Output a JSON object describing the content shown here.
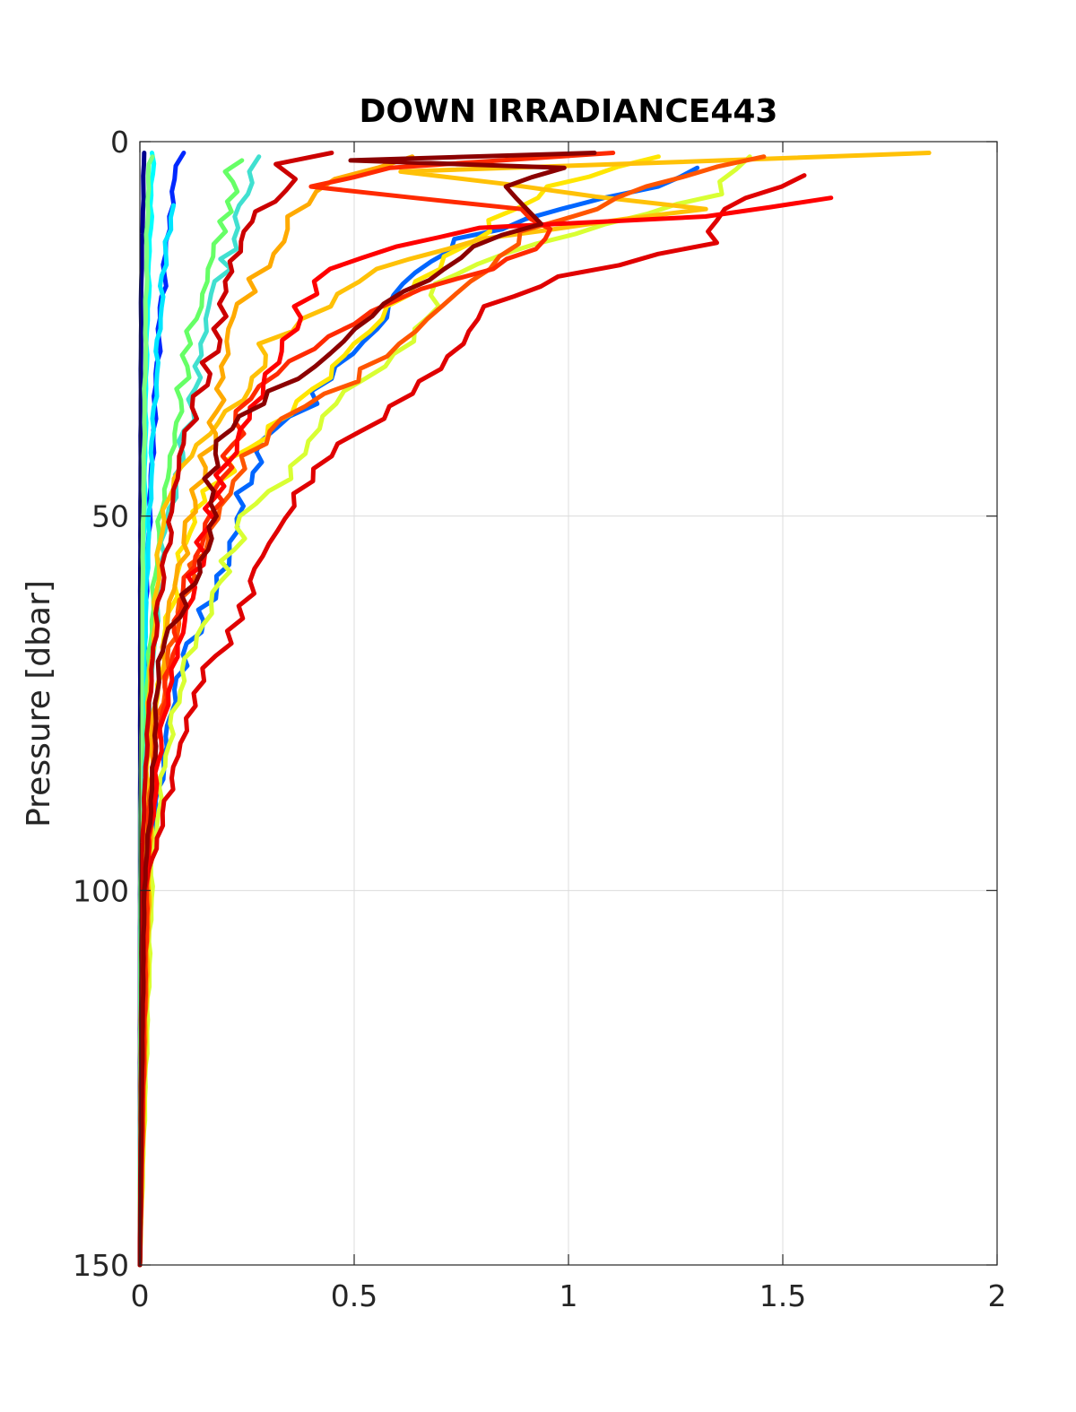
{
  "chart_data": {
    "type": "line",
    "title": "DOWN IRRADIANCE443",
    "xlabel": "",
    "ylabel": "Pressure [dbar]",
    "xlim": [
      0,
      2
    ],
    "ylim": [
      0,
      150
    ],
    "y_reversed": true,
    "grid": true,
    "legend": "none",
    "xticks": [
      0,
      0.5,
      1,
      1.5,
      2
    ],
    "xtick_labels": [
      "0",
      "0.5",
      "1",
      "1.5",
      "2"
    ],
    "yticks": [
      0,
      50,
      100,
      150
    ],
    "ytick_labels": [
      "0",
      "50",
      "100",
      "150"
    ],
    "series": [
      {
        "color": "#00008f",
        "points": [
          [
            0.01,
            1.5
          ],
          [
            0.003,
            20
          ],
          [
            0.001,
            60
          ],
          [
            0,
            150
          ]
        ]
      },
      {
        "color": "#0028ff",
        "points": [
          [
            0.09,
            1.5
          ],
          [
            0.085,
            5
          ],
          [
            0.075,
            10
          ],
          [
            0.06,
            15
          ],
          [
            0.045,
            25
          ],
          [
            0.03,
            40
          ],
          [
            0.015,
            60
          ],
          [
            0.006,
            80
          ],
          [
            0.002,
            100
          ],
          [
            0,
            150
          ]
        ]
      },
      {
        "color": "#00e5ff",
        "points": [
          [
            0.075,
            8.5
          ],
          [
            0.06,
            15
          ],
          [
            0.045,
            25
          ],
          [
            0.03,
            40
          ],
          [
            0.015,
            60
          ],
          [
            0.006,
            80
          ],
          [
            0.002,
            100
          ],
          [
            0,
            150
          ]
        ]
      },
      {
        "color": "#00ffff",
        "points": [
          [
            0.03,
            1.5
          ],
          [
            0.025,
            10
          ],
          [
            0.015,
            30
          ],
          [
            0.008,
            60
          ],
          [
            0.003,
            90
          ],
          [
            0,
            150
          ]
        ]
      },
      {
        "color": "#7fff7f",
        "points": [
          [
            0.03,
            2
          ],
          [
            0.02,
            3
          ],
          [
            0.018,
            8
          ],
          [
            0.012,
            30
          ],
          [
            0.006,
            60
          ],
          [
            0.002,
            90
          ],
          [
            0,
            150
          ]
        ]
      },
      {
        "color": "#66ff66",
        "points": [
          [
            0.24,
            2.5
          ],
          [
            0.22,
            4
          ],
          [
            0.2,
            8
          ],
          [
            0.18,
            12
          ],
          [
            0.16,
            17
          ],
          [
            0.14,
            22
          ],
          [
            0.12,
            27
          ],
          [
            0.1,
            33
          ],
          [
            0.08,
            39
          ],
          [
            0.06,
            45
          ],
          [
            0.04,
            55
          ],
          [
            0.02,
            70
          ],
          [
            0.01,
            85
          ],
          [
            0.003,
            100
          ],
          [
            0,
            150
          ]
        ]
      },
      {
        "color": "#40e0d0",
        "points": [
          [
            0.29,
            2
          ],
          [
            0.27,
            4
          ],
          [
            0.25,
            7
          ],
          [
            0.23,
            10
          ],
          [
            0.21,
            13
          ],
          [
            0.19,
            17
          ],
          [
            0.17,
            22
          ],
          [
            0.15,
            27
          ],
          [
            0.13,
            33
          ],
          [
            0.1,
            40
          ],
          [
            0.08,
            46
          ],
          [
            0.05,
            55
          ],
          [
            0.03,
            70
          ],
          [
            0.01,
            85
          ],
          [
            0,
            150
          ]
        ]
      },
      {
        "color": "#0066ff",
        "points": [
          [
            1.3,
            3.5
          ],
          [
            1.2,
            6
          ],
          [
            1.0,
            9
          ],
          [
            0.75,
            13
          ],
          [
            0.6,
            19
          ],
          [
            0.55,
            25
          ],
          [
            0.45,
            30
          ],
          [
            0.4,
            35
          ],
          [
            0.3,
            40
          ],
          [
            0.24,
            47
          ],
          [
            0.22,
            52
          ],
          [
            0.18,
            58
          ],
          [
            0.14,
            64
          ],
          [
            0.1,
            70
          ],
          [
            0.07,
            78
          ],
          [
            0.04,
            88
          ],
          [
            0.02,
            100
          ],
          [
            0,
            150
          ]
        ]
      },
      {
        "color": "#d9ff33",
        "points": [
          [
            1.4,
            2
          ],
          [
            1.35,
            7
          ],
          [
            1.1,
            11
          ],
          [
            0.85,
            15
          ],
          [
            0.7,
            19
          ],
          [
            0.65,
            25
          ],
          [
            0.55,
            30
          ],
          [
            0.45,
            35
          ],
          [
            0.4,
            40
          ],
          [
            0.35,
            45
          ],
          [
            0.25,
            50
          ],
          [
            0.2,
            56
          ],
          [
            0.15,
            63
          ],
          [
            0.1,
            72
          ],
          [
            0.06,
            82
          ],
          [
            0.03,
            95
          ],
          [
            0,
            150
          ]
        ]
      },
      {
        "color": "#ffe600",
        "points": [
          [
            1.2,
            2
          ],
          [
            0.95,
            6
          ],
          [
            0.8,
            12
          ],
          [
            0.7,
            17
          ],
          [
            0.6,
            22
          ],
          [
            0.5,
            27
          ],
          [
            0.4,
            33
          ],
          [
            0.3,
            38
          ],
          [
            0.2,
            44
          ],
          [
            0.15,
            48
          ],
          [
            0.1,
            55
          ],
          [
            0.06,
            65
          ],
          [
            0.03,
            80
          ],
          [
            0,
            150
          ]
        ]
      },
      {
        "color": "#ffc107",
        "points": [
          [
            1.86,
            1.5
          ],
          [
            0.6,
            4
          ],
          [
            1.3,
            9
          ],
          [
            0.8,
            13
          ],
          [
            0.55,
            17
          ],
          [
            0.45,
            22
          ],
          [
            0.3,
            27
          ],
          [
            0.25,
            33
          ],
          [
            0.15,
            39
          ],
          [
            0.08,
            45
          ],
          [
            0.05,
            52
          ],
          [
            0.04,
            60
          ],
          [
            0.02,
            75
          ],
          [
            0,
            150
          ]
        ]
      },
      {
        "color": "#ffaa00",
        "points": [
          [
            0.65,
            2
          ],
          [
            0.45,
            5
          ],
          [
            0.35,
            10
          ],
          [
            0.3,
            15
          ],
          [
            0.25,
            20
          ],
          [
            0.22,
            25
          ],
          [
            0.2,
            30
          ],
          [
            0.18,
            36
          ],
          [
            0.15,
            42
          ],
          [
            0.12,
            48
          ],
          [
            0.1,
            55
          ],
          [
            0.07,
            63
          ],
          [
            0.03,
            78
          ],
          [
            0,
            150
          ]
        ]
      },
      {
        "color": "#ff5500",
        "points": [
          [
            1.45,
            2
          ],
          [
            1.2,
            6
          ],
          [
            0.9,
            12
          ],
          [
            0.8,
            17
          ],
          [
            0.7,
            22
          ],
          [
            0.6,
            27
          ],
          [
            0.5,
            32
          ],
          [
            0.35,
            37
          ],
          [
            0.25,
            42
          ],
          [
            0.2,
            47
          ],
          [
            0.16,
            52
          ],
          [
            0.12,
            58
          ],
          [
            0.08,
            66
          ],
          [
            0.04,
            78
          ],
          [
            0.02,
            90
          ],
          [
            0,
            150
          ]
        ]
      },
      {
        "color": "#ff2a00",
        "points": [
          [
            1.1,
            1.5
          ],
          [
            0.6,
            3.5
          ],
          [
            0.4,
            6
          ],
          [
            0.9,
            9
          ],
          [
            0.95,
            13
          ],
          [
            0.8,
            17
          ],
          [
            0.6,
            21
          ],
          [
            0.45,
            26
          ],
          [
            0.32,
            31
          ],
          [
            0.24,
            36
          ],
          [
            0.2,
            42
          ],
          [
            0.17,
            48
          ],
          [
            0.14,
            54
          ],
          [
            0.1,
            61
          ],
          [
            0.07,
            70
          ],
          [
            0.04,
            80
          ],
          [
            0.02,
            92
          ],
          [
            0,
            150
          ]
        ]
      },
      {
        "color": "#e00000",
        "points": [
          [
            1.55,
            4.5
          ],
          [
            1.35,
            9
          ],
          [
            1.35,
            13.5
          ],
          [
            1.0,
            18
          ],
          [
            0.8,
            22
          ],
          [
            0.75,
            27
          ],
          [
            0.65,
            32
          ],
          [
            0.55,
            37
          ],
          [
            0.45,
            42
          ],
          [
            0.38,
            47
          ],
          [
            0.32,
            52
          ],
          [
            0.27,
            57
          ],
          [
            0.23,
            62
          ],
          [
            0.19,
            67
          ],
          [
            0.15,
            72
          ],
          [
            0.12,
            77
          ],
          [
            0.09,
            82
          ],
          [
            0.06,
            88
          ],
          [
            0.04,
            93
          ],
          [
            0.01,
            100
          ],
          [
            0,
            150
          ]
        ]
      },
      {
        "color": "#ff0000",
        "points": [
          [
            1.6,
            7.5
          ],
          [
            1.3,
            10
          ],
          [
            0.8,
            11.5
          ],
          [
            0.6,
            14
          ],
          [
            0.45,
            17
          ],
          [
            0.38,
            22
          ],
          [
            0.32,
            28
          ],
          [
            0.27,
            34
          ],
          [
            0.23,
            40
          ],
          [
            0.19,
            46
          ],
          [
            0.16,
            52
          ],
          [
            0.13,
            58
          ],
          [
            0.1,
            64
          ],
          [
            0.07,
            72
          ],
          [
            0.05,
            80
          ],
          [
            0.03,
            90
          ],
          [
            0.01,
            100
          ],
          [
            0,
            150
          ]
        ]
      },
      {
        "color": "#cc0000",
        "points": [
          [
            0.44,
            1.5
          ],
          [
            0.32,
            3
          ],
          [
            0.35,
            5
          ],
          [
            0.3,
            8
          ],
          [
            0.26,
            12
          ],
          [
            0.22,
            16
          ],
          [
            0.2,
            20
          ],
          [
            0.18,
            25
          ],
          [
            0.15,
            31
          ],
          [
            0.12,
            37
          ],
          [
            0.1,
            42
          ],
          [
            0.08,
            48
          ],
          [
            0.06,
            55
          ],
          [
            0.04,
            63
          ],
          [
            0.025,
            72
          ],
          [
            0.015,
            82
          ],
          [
            0.005,
            95
          ],
          [
            0,
            150
          ]
        ]
      },
      {
        "color": "#8b0000",
        "points": [
          [
            1.08,
            1.5
          ],
          [
            0.5,
            2.5
          ],
          [
            0.97,
            3.5
          ],
          [
            0.85,
            6
          ],
          [
            0.9,
            9
          ],
          [
            0.93,
            11
          ],
          [
            0.8,
            14
          ],
          [
            0.72,
            17
          ],
          [
            0.6,
            20
          ],
          [
            0.5,
            25
          ],
          [
            0.4,
            30
          ],
          [
            0.28,
            35
          ],
          [
            0.2,
            40
          ],
          [
            0.16,
            45
          ],
          [
            0.17,
            50
          ],
          [
            0.14,
            56
          ],
          [
            0.1,
            62
          ],
          [
            0.05,
            68
          ],
          [
            0.04,
            75
          ],
          [
            0.03,
            85
          ],
          [
            0.01,
            100
          ],
          [
            0,
            150
          ]
        ]
      }
    ]
  }
}
